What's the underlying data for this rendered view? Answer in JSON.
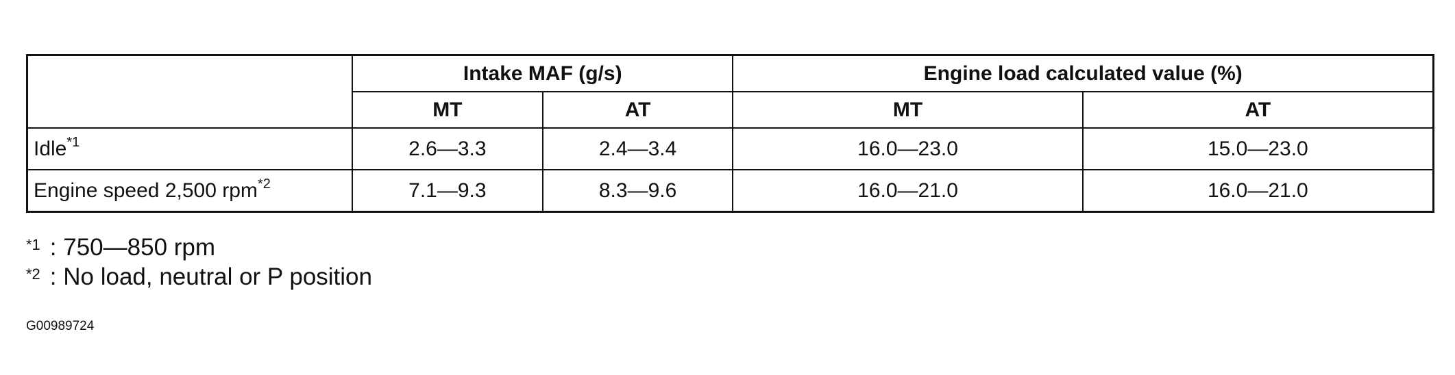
{
  "table": {
    "group_headers": [
      "Intake MAF (g/s)",
      "Engine load calculated value (%)"
    ],
    "sub_headers": [
      "MT",
      "AT",
      "MT",
      "AT"
    ],
    "rows": [
      {
        "label": "Idle",
        "mark": "*1",
        "values": [
          "2.6—3.3",
          "2.4—3.4",
          "16.0—23.0",
          "15.0—23.0"
        ]
      },
      {
        "label": "Engine speed 2,500 rpm",
        "mark": "*2",
        "values": [
          "7.1—9.3",
          "8.3—9.6",
          "16.0—21.0",
          "16.0—21.0"
        ]
      }
    ]
  },
  "footnotes": [
    {
      "mark": "*1",
      "text": ": 750—850 rpm"
    },
    {
      "mark": "*2",
      "text": ": No load, neutral or P position"
    }
  ],
  "figure_code": "G00989724"
}
